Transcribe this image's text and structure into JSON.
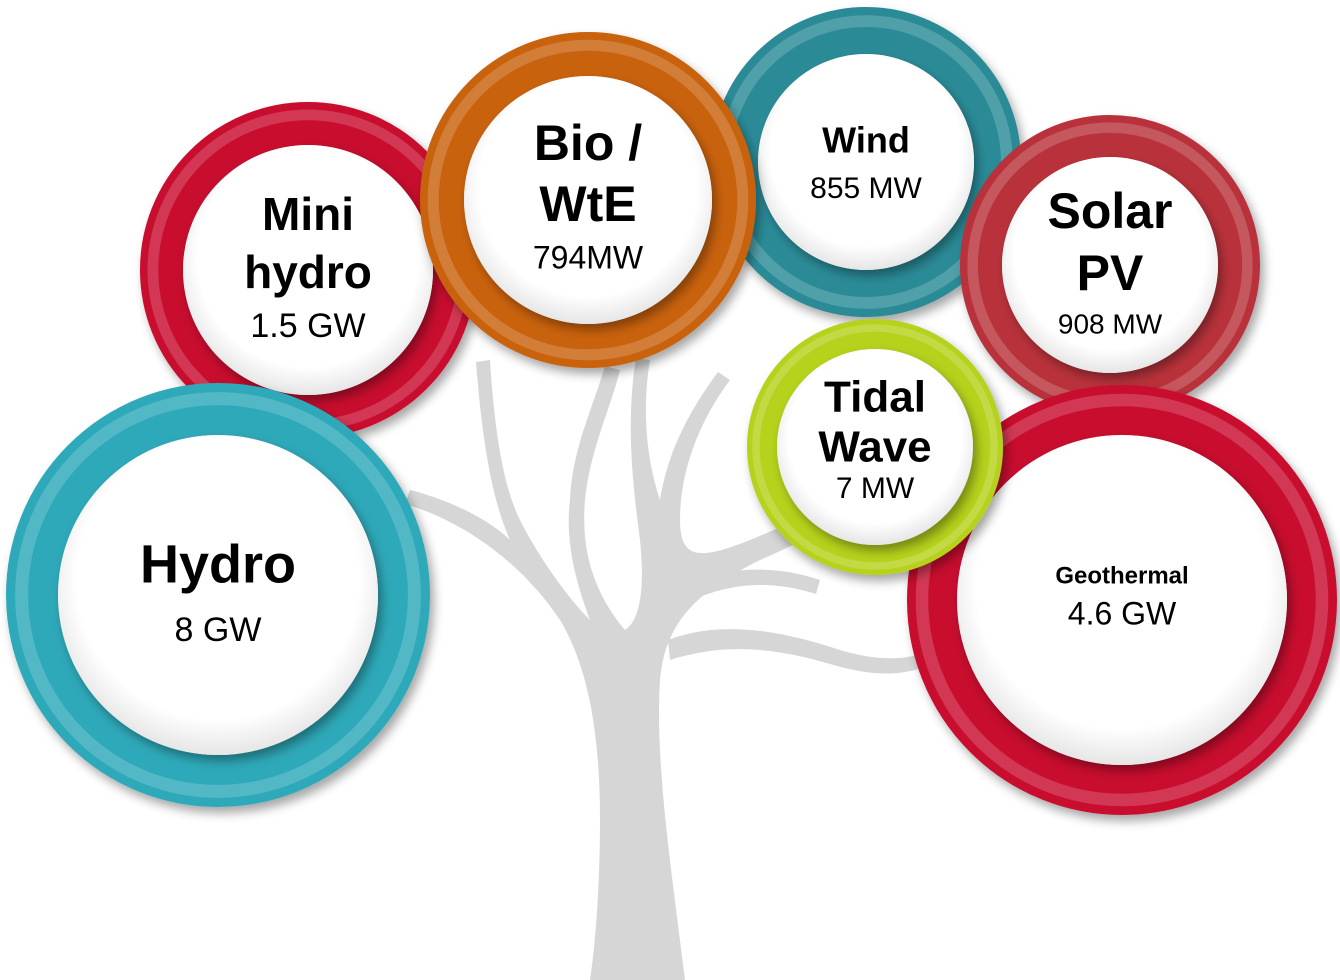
{
  "nodes": [
    {
      "label": [
        "Hydro"
      ],
      "value": "8 GW"
    },
    {
      "label": [
        "Mini",
        "hydro"
      ],
      "value": "1.5 GW"
    },
    {
      "label": [
        "Bio /",
        "WtE"
      ],
      "value": "794MW"
    },
    {
      "label": [
        "Wind"
      ],
      "value": "855 MW"
    },
    {
      "label": [
        "Solar",
        "PV"
      ],
      "value": "908 MW"
    },
    {
      "label": [
        "Tidal",
        "Wave"
      ],
      "value": "7 MW"
    },
    {
      "label": [
        "Geothermal"
      ],
      "value": "4.6 GW"
    }
  ]
}
